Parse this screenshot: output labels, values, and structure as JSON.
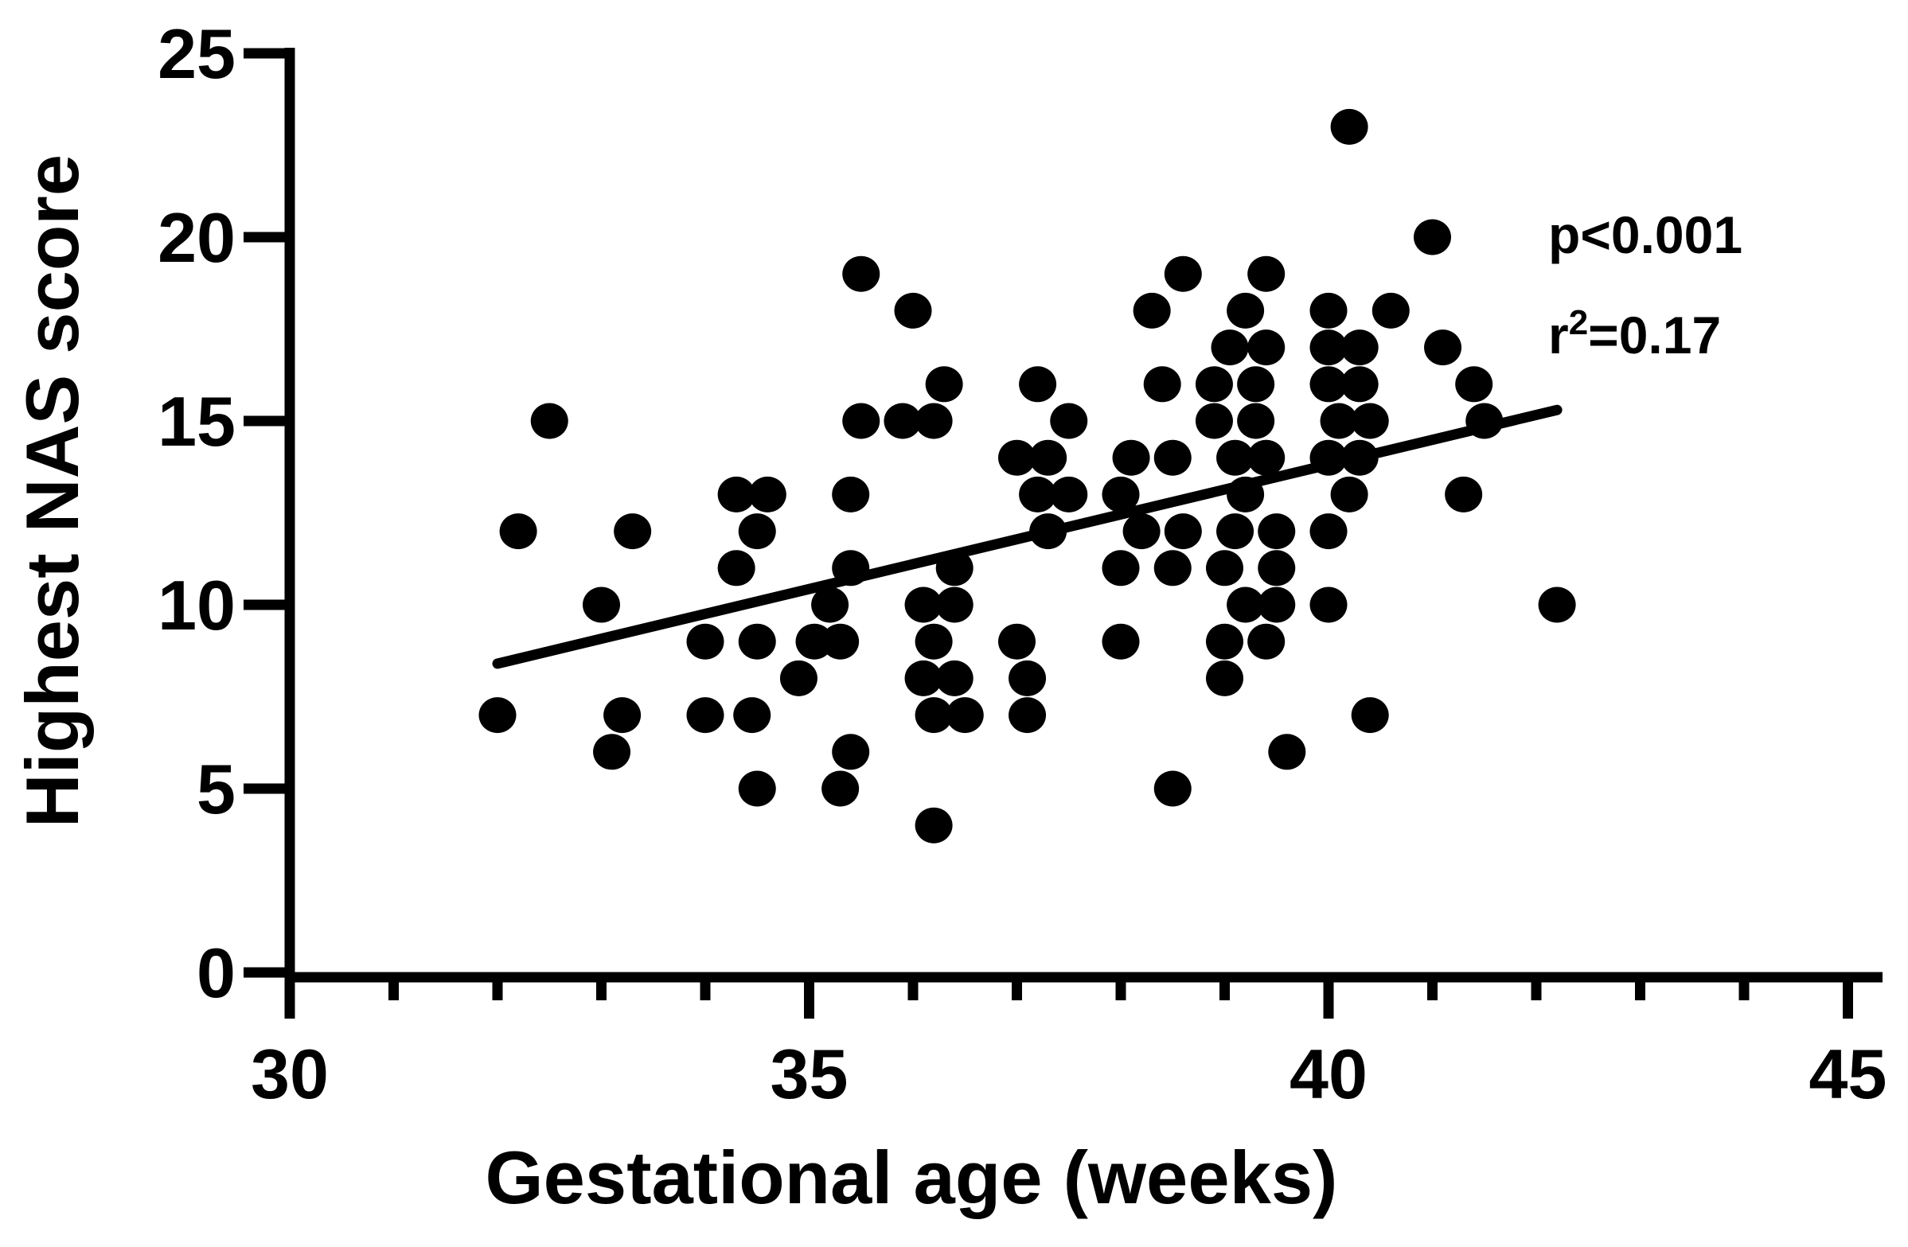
{
  "figure": {
    "background": "#ffffff",
    "ink_color": "#000000"
  },
  "chart_data": {
    "type": "scatter",
    "title": "",
    "xlabel": "Gestational age (weeks)",
    "ylabel": "Highest NAS score",
    "xlim": [
      30,
      45
    ],
    "ylim": [
      0,
      25
    ],
    "x_major_ticks": [
      30,
      35,
      40,
      45
    ],
    "x_minor_tick_step": 1,
    "y_ticks": [
      0,
      5,
      10,
      15,
      20,
      25
    ],
    "grid": "off",
    "legend": "none",
    "marker_color": "#000000",
    "annotations": {
      "p_value": "p<0.001",
      "r_squared": {
        "prefix": "r",
        "sup": "2",
        "suffix": "=0.17"
      }
    },
    "trend_line": {
      "x1": 32.0,
      "y1": 8.4,
      "x2": 42.2,
      "y2": 15.3
    },
    "points": [
      [
        40.2,
        23
      ],
      [
        41.0,
        20
      ],
      [
        35.5,
        19
      ],
      [
        38.6,
        19
      ],
      [
        39.4,
        19
      ],
      [
        36.0,
        18
      ],
      [
        38.3,
        18
      ],
      [
        39.2,
        18
      ],
      [
        40.0,
        18
      ],
      [
        40.6,
        18
      ],
      [
        39.05,
        17
      ],
      [
        39.4,
        17
      ],
      [
        40.0,
        17
      ],
      [
        40.3,
        17
      ],
      [
        41.1,
        17
      ],
      [
        36.3,
        16
      ],
      [
        37.2,
        16
      ],
      [
        38.4,
        16
      ],
      [
        38.9,
        16
      ],
      [
        39.3,
        16
      ],
      [
        40.0,
        16
      ],
      [
        40.3,
        16
      ],
      [
        41.4,
        16
      ],
      [
        32.5,
        15
      ],
      [
        35.5,
        15
      ],
      [
        35.9,
        15
      ],
      [
        36.2,
        15
      ],
      [
        37.5,
        15
      ],
      [
        38.9,
        15
      ],
      [
        39.3,
        15
      ],
      [
        40.1,
        15
      ],
      [
        40.4,
        15
      ],
      [
        41.5,
        15
      ],
      [
        37.0,
        14
      ],
      [
        37.3,
        14
      ],
      [
        38.1,
        14
      ],
      [
        38.5,
        14
      ],
      [
        39.1,
        14
      ],
      [
        39.4,
        14
      ],
      [
        40.0,
        14
      ],
      [
        40.3,
        14
      ],
      [
        34.3,
        13
      ],
      [
        34.6,
        13
      ],
      [
        35.4,
        13
      ],
      [
        37.2,
        13
      ],
      [
        37.5,
        13
      ],
      [
        38.0,
        13
      ],
      [
        39.2,
        13
      ],
      [
        40.2,
        13
      ],
      [
        41.3,
        13
      ],
      [
        32.2,
        12
      ],
      [
        33.3,
        12
      ],
      [
        34.5,
        12
      ],
      [
        37.3,
        12
      ],
      [
        38.2,
        12
      ],
      [
        38.6,
        12
      ],
      [
        39.1,
        12
      ],
      [
        39.5,
        12
      ],
      [
        40.0,
        12
      ],
      [
        34.3,
        11
      ],
      [
        35.4,
        11
      ],
      [
        36.4,
        11
      ],
      [
        38.0,
        11
      ],
      [
        38.5,
        11
      ],
      [
        39.0,
        11
      ],
      [
        39.5,
        11
      ],
      [
        33.0,
        10
      ],
      [
        35.2,
        10
      ],
      [
        36.1,
        10
      ],
      [
        36.4,
        10
      ],
      [
        39.2,
        10
      ],
      [
        39.5,
        10
      ],
      [
        40.0,
        10
      ],
      [
        42.2,
        10
      ],
      [
        34.0,
        9
      ],
      [
        34.5,
        9
      ],
      [
        35.05,
        9
      ],
      [
        35.3,
        9
      ],
      [
        36.2,
        9
      ],
      [
        37.0,
        9
      ],
      [
        38.0,
        9
      ],
      [
        39.0,
        9
      ],
      [
        39.4,
        9
      ],
      [
        34.9,
        8
      ],
      [
        36.1,
        8
      ],
      [
        36.4,
        8
      ],
      [
        37.1,
        8
      ],
      [
        39.0,
        8
      ],
      [
        32.0,
        7
      ],
      [
        33.2,
        7
      ],
      [
        34.0,
        7
      ],
      [
        34.45,
        7
      ],
      [
        36.2,
        7
      ],
      [
        36.5,
        7
      ],
      [
        37.1,
        7
      ],
      [
        40.4,
        7
      ],
      [
        33.1,
        6
      ],
      [
        35.4,
        6
      ],
      [
        39.6,
        6
      ],
      [
        34.5,
        5
      ],
      [
        35.3,
        5
      ],
      [
        38.5,
        5
      ],
      [
        36.2,
        4
      ]
    ]
  }
}
